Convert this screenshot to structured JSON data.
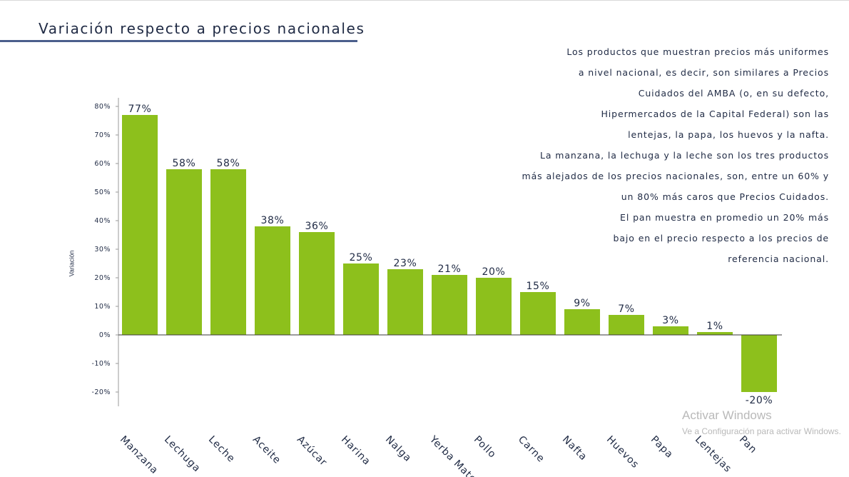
{
  "page": {
    "title": "Variación respecto a precios nacionales",
    "description_lines": [
      "Los productos que muestran precios más uniformes",
      "a nivel nacional, es decir, son similares a Precios",
      "Cuidados del AMBA (o, en su defecto,",
      "Hipermercados de la Capital Federal) son las",
      "lentejas, la papa, los huevos y la nafta.",
      "La manzana, la lechuga y la leche son los tres productos",
      "más alejados de los precios nacionales, son, entre un 60% y",
      "un 80% más caros que Precios Cuidados.",
      "El pan muestra en promedio un 20% más",
      "bajo en el precio respecto a los precios de",
      "referencia nacional."
    ],
    "watermark": {
      "title": "Activar Windows",
      "subtitle": "Ve a Configuración para activar Windows."
    }
  },
  "chart_data": {
    "type": "bar",
    "title": "Variación respecto a precios nacionales",
    "xlabel": "",
    "ylabel": "Variación",
    "ylim": [
      -0.2,
      0.8
    ],
    "yticks": [
      {
        "value": 0.8,
        "label": "80%"
      },
      {
        "value": 0.7,
        "label": "70%"
      },
      {
        "value": 0.6,
        "label": "60%"
      },
      {
        "value": 0.5,
        "label": "50%"
      },
      {
        "value": 0.4,
        "label": "40%"
      },
      {
        "value": 0.3,
        "label": "30%"
      },
      {
        "value": 0.2,
        "label": "20%"
      },
      {
        "value": 0.1,
        "label": "10%"
      },
      {
        "value": 0.0,
        "label": "0%"
      },
      {
        "value": -0.1,
        "label": "-10%"
      },
      {
        "value": -0.2,
        "label": "-20%"
      }
    ],
    "categories": [
      "Manzana",
      "Lechuga",
      "Leche",
      "Aceite",
      "Azúcar",
      "Harina",
      "Nalga",
      "Yerba Mate",
      "Pollo",
      "Carne",
      "Nafta",
      "Huevos",
      "Papa",
      "Lentejas",
      "Pan"
    ],
    "values": [
      0.77,
      0.58,
      0.58,
      0.38,
      0.36,
      0.25,
      0.23,
      0.21,
      0.2,
      0.15,
      0.09,
      0.07,
      0.03,
      0.01,
      -0.2
    ],
    "data_labels": [
      "77%",
      "58%",
      "58%",
      "38%",
      "36%",
      "25%",
      "23%",
      "21%",
      "20%",
      "15%",
      "9%",
      "7%",
      "3%",
      "1%",
      "-20%"
    ],
    "bar_color": "#8dc01c",
    "grid": false,
    "legend": "none"
  }
}
